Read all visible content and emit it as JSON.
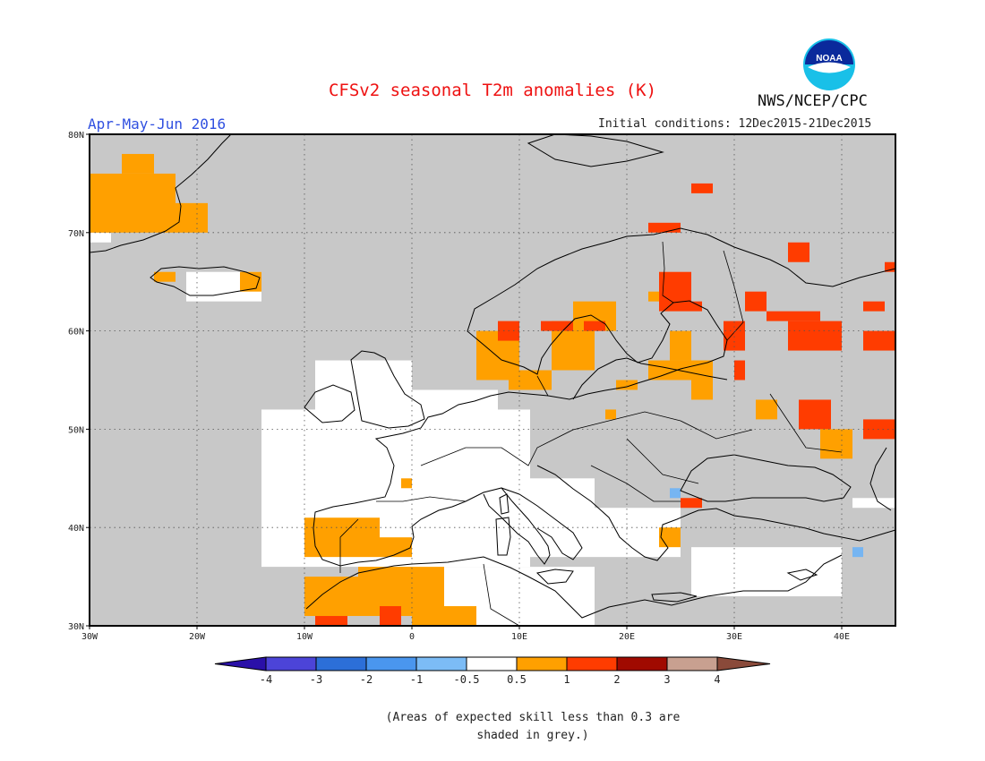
{
  "header": {
    "title": "CFSv2 seasonal T2m anomalies (K)",
    "period": "Apr-May-Jun 2016",
    "initial_conditions": "Initial conditions: 12Dec2015-21Dec2015",
    "agency": "NWS/NCEP/CPC",
    "logo_icon": "noaa-logo-icon",
    "logo_text": "NOAA"
  },
  "map": {
    "lon_range": [
      -30,
      45
    ],
    "lat_range": [
      30,
      80
    ],
    "x_tick_labels": [
      "30W",
      "20W",
      "10W",
      "0",
      "10E",
      "20E",
      "30E",
      "40E"
    ],
    "y_tick_labels": [
      "30N",
      "40N",
      "50N",
      "60N",
      "70N",
      "80N"
    ],
    "grid": "dotted",
    "cell_degrees": 1,
    "colors": {
      "grey": "#c8c8c8",
      "white": "#ffffff",
      "light_blue": "#76b5f2",
      "orange": "#ffa000",
      "red": "#ff3c00",
      "land_line": "#000000"
    },
    "anomaly_regions": [
      {
        "class": "white",
        "lon": [
          -30,
          -28
        ],
        "lat": [
          69,
          70
        ]
      },
      {
        "class": "orange",
        "lon": [
          -30,
          -22
        ],
        "lat": [
          70,
          76
        ]
      },
      {
        "class": "orange",
        "lon": [
          -27,
          -24
        ],
        "lat": [
          76,
          78
        ]
      },
      {
        "class": "orange",
        "lon": [
          -22,
          -19
        ],
        "lat": [
          70,
          73
        ]
      },
      {
        "class": "white",
        "lon": [
          -21,
          -14
        ],
        "lat": [
          63,
          66
        ]
      },
      {
        "class": "orange",
        "lon": [
          -24,
          -22
        ],
        "lat": [
          65,
          66
        ]
      },
      {
        "class": "orange",
        "lon": [
          -16,
          -14
        ],
        "lat": [
          64,
          66
        ]
      },
      {
        "class": "white",
        "lon": [
          -14,
          11
        ],
        "lat": [
          36,
          52
        ]
      },
      {
        "class": "white",
        "lon": [
          -9,
          0
        ],
        "lat": [
          50,
          57
        ]
      },
      {
        "class": "white",
        "lon": [
          0,
          8
        ],
        "lat": [
          47,
          54
        ]
      },
      {
        "class": "white",
        "lon": [
          8,
          17
        ],
        "lat": [
          37,
          45
        ]
      },
      {
        "class": "white",
        "lon": [
          17,
          25
        ],
        "lat": [
          37,
          42
        ]
      },
      {
        "class": "white",
        "lon": [
          0,
          17
        ],
        "lat": [
          30,
          36
        ]
      },
      {
        "class": "white",
        "lon": [
          26,
          40
        ],
        "lat": [
          33,
          38
        ]
      },
      {
        "class": "white",
        "lon": [
          41,
          45
        ],
        "lat": [
          42,
          43
        ]
      },
      {
        "class": "orange",
        "lon": [
          -10,
          -3
        ],
        "lat": [
          37,
          41
        ]
      },
      {
        "class": "orange",
        "lon": [
          -3,
          0
        ],
        "lat": [
          37,
          39
        ]
      },
      {
        "class": "orange",
        "lon": [
          -10,
          -5
        ],
        "lat": [
          31,
          35
        ]
      },
      {
        "class": "orange",
        "lon": [
          -5,
          0
        ],
        "lat": [
          31,
          36
        ]
      },
      {
        "class": "orange",
        "lon": [
          0,
          3
        ],
        "lat": [
          30,
          36
        ]
      },
      {
        "class": "orange",
        "lon": [
          3,
          6
        ],
        "lat": [
          30,
          32
        ]
      },
      {
        "class": "red",
        "lon": [
          -9,
          -6
        ],
        "lat": [
          30,
          31
        ]
      },
      {
        "class": "red",
        "lon": [
          -3,
          -1
        ],
        "lat": [
          30,
          32
        ]
      },
      {
        "class": "orange",
        "lon": [
          -1,
          0
        ],
        "lat": [
          44,
          45
        ]
      },
      {
        "class": "orange",
        "lon": [
          6,
          10
        ],
        "lat": [
          55,
          60
        ]
      },
      {
        "class": "orange",
        "lon": [
          9,
          13
        ],
        "lat": [
          54,
          56
        ]
      },
      {
        "class": "orange",
        "lon": [
          13,
          17
        ],
        "lat": [
          56,
          61
        ]
      },
      {
        "class": "red",
        "lon": [
          8,
          10
        ],
        "lat": [
          59,
          61
        ]
      },
      {
        "class": "red",
        "lon": [
          12,
          17
        ],
        "lat": [
          60,
          61
        ]
      },
      {
        "class": "orange",
        "lon": [
          15,
          19
        ],
        "lat": [
          60,
          63
        ]
      },
      {
        "class": "red",
        "lon": [
          16,
          18
        ],
        "lat": [
          60,
          61
        ]
      },
      {
        "class": "orange",
        "lon": [
          22,
          28
        ],
        "lat": [
          55,
          57
        ]
      },
      {
        "class": "orange",
        "lon": [
          24,
          26
        ],
        "lat": [
          57,
          60
        ]
      },
      {
        "class": "red",
        "lon": [
          23,
          26
        ],
        "lat": [
          62,
          66
        ]
      },
      {
        "class": "red",
        "lon": [
          26,
          27
        ],
        "lat": [
          62,
          63
        ]
      },
      {
        "class": "orange",
        "lon": [
          22,
          23
        ],
        "lat": [
          63,
          64
        ]
      },
      {
        "class": "red",
        "lon": [
          31,
          33
        ],
        "lat": [
          62,
          64
        ]
      },
      {
        "class": "red",
        "lon": [
          35,
          40
        ],
        "lat": [
          58,
          61
        ]
      },
      {
        "class": "red",
        "lon": [
          33,
          38
        ],
        "lat": [
          61,
          62
        ]
      },
      {
        "class": "red",
        "lon": [
          35,
          37
        ],
        "lat": [
          67,
          69
        ]
      },
      {
        "class": "red",
        "lon": [
          44,
          45
        ],
        "lat": [
          66,
          67
        ]
      },
      {
        "class": "red",
        "lon": [
          42,
          44
        ],
        "lat": [
          62,
          63
        ]
      },
      {
        "class": "red",
        "lon": [
          42,
          45
        ],
        "lat": [
          58,
          60
        ]
      },
      {
        "class": "red",
        "lon": [
          29,
          31
        ],
        "lat": [
          58,
          61
        ]
      },
      {
        "class": "red",
        "lon": [
          30,
          31
        ],
        "lat": [
          55,
          57
        ]
      },
      {
        "class": "red",
        "lon": [
          36,
          39
        ],
        "lat": [
          50,
          53
        ]
      },
      {
        "class": "red",
        "lon": [
          42,
          45
        ],
        "lat": [
          49,
          51
        ]
      },
      {
        "class": "orange",
        "lon": [
          38,
          41
        ],
        "lat": [
          47,
          50
        ]
      },
      {
        "class": "orange",
        "lon": [
          32,
          34
        ],
        "lat": [
          51,
          53
        ]
      },
      {
        "class": "orange",
        "lon": [
          26,
          28
        ],
        "lat": [
          53,
          55
        ]
      },
      {
        "class": "orange",
        "lon": [
          19,
          21
        ],
        "lat": [
          54,
          55
        ]
      },
      {
        "class": "orange",
        "lon": [
          23,
          25
        ],
        "lat": [
          38,
          40
        ]
      },
      {
        "class": "red",
        "lon": [
          25,
          27
        ],
        "lat": [
          42,
          43
        ]
      },
      {
        "class": "orange",
        "lon": [
          18,
          19
        ],
        "lat": [
          51,
          52
        ]
      },
      {
        "class": "red",
        "lon": [
          26,
          28
        ],
        "lat": [
          74,
          75
        ]
      },
      {
        "class": "red",
        "lon": [
          22,
          25
        ],
        "lat": [
          70,
          71
        ]
      },
      {
        "class": "light_blue",
        "lon": [
          24,
          25
        ],
        "lat": [
          43,
          44
        ]
      },
      {
        "class": "light_blue",
        "lon": [
          41,
          42
        ],
        "lat": [
          37,
          38
        ]
      }
    ]
  },
  "legend": {
    "colors": [
      "#2a10a8",
      "#4c44d8",
      "#2c6fd8",
      "#4a96ee",
      "#7cbcf6",
      "#ffffff",
      "#ffa000",
      "#ff3c00",
      "#a00a00",
      "#c8a090",
      "#8a4a3a"
    ],
    "labels": [
      "-4",
      "-3",
      "-2",
      "-1",
      "-0.5",
      "0.5",
      "1",
      "2",
      "3",
      "4"
    ]
  },
  "note": "(Areas of expected skill less than 0.3 are shaded in grey.)"
}
